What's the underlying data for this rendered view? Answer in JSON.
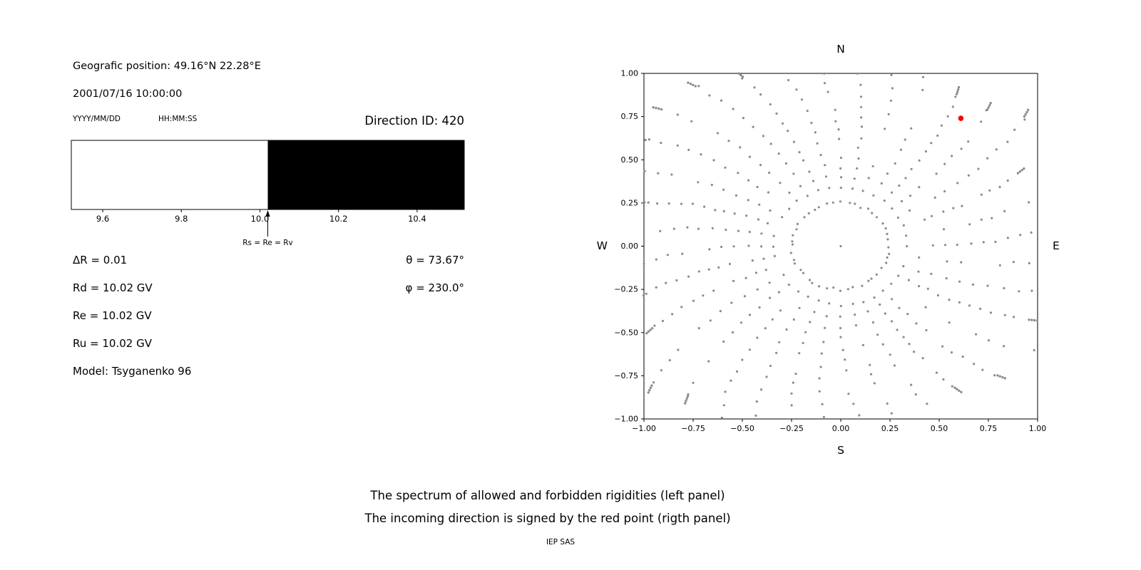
{
  "figure": {
    "bg": "#ffffff"
  },
  "header": {
    "geo_position": "Geografic position: 49.16°N 22.28°E",
    "datetime": "2001/07/16 10:00:00",
    "date_format_label": "YYYY/MM/DD",
    "time_format_label": "HH:MM:SS",
    "direction_id_label": "Direction ID: 420"
  },
  "parameters": {
    "left": [
      "ΔR = 0.01",
      "Rd = 10.02 GV",
      "Re = 10.02 GV",
      "Ru = 10.02 GV",
      "Model: Tsyganenko 96"
    ],
    "right": [
      "θ = 73.67°",
      "φ = 230.0°"
    ]
  },
  "compass": {
    "north": "N",
    "south": "S",
    "east": "E",
    "west": "W"
  },
  "caption": {
    "line1": "The spectrum of allowed and forbidden rigidities (left panel)",
    "line2": "The incoming direction is signed by the red point (rigth panel)",
    "credit": "IEP SAS"
  },
  "chart_data": [
    {
      "type": "area",
      "name": "rigidity-spectrum",
      "x_range": [
        9.52,
        10.52
      ],
      "allowed_region": {
        "from": 9.52,
        "to": 10.02,
        "color": "#ffffff",
        "meaning": "allowed rigidities"
      },
      "forbidden_region": {
        "from": 10.02,
        "to": 10.52,
        "color": "#000000",
        "meaning": "forbidden rigidities"
      },
      "x_tick_values": [
        9.6,
        9.8,
        10.0,
        10.2,
        10.4
      ],
      "x_tick_labels": [
        "9.6",
        "9.8",
        "10.0",
        "10.2",
        "10.4"
      ],
      "annotation": {
        "label": "Rs = Re = Rv",
        "x": 10.02
      }
    },
    {
      "type": "scatter",
      "name": "incoming-direction-map",
      "xlim": [
        -1.0,
        1.0
      ],
      "ylim": [
        -1.0,
        1.0
      ],
      "x_tick_values": [
        -1.0,
        -0.75,
        -0.5,
        -0.25,
        0.0,
        0.25,
        0.5,
        0.75,
        1.0
      ],
      "y_tick_values": [
        1.0,
        0.75,
        0.5,
        0.25,
        0.0,
        -0.25,
        -0.5,
        -0.75,
        -1.0
      ],
      "x_tick_labels": [
        "−1.00",
        "−0.75",
        "−0.50",
        "−0.25",
        "0.00",
        "0.25",
        "0.50",
        "0.75",
        "1.00"
      ],
      "y_tick_labels": [
        "1.00",
        "0.75",
        "0.50",
        "0.25",
        "0.00",
        "−0.25",
        "−0.50",
        "−0.75",
        "−1.00"
      ],
      "dot_color": "#8c8c8c",
      "red_point": {
        "x": 0.61,
        "y": 0.74,
        "color": "#ff0000",
        "meaning": "incoming direction"
      },
      "pattern": {
        "spoke_count": 36,
        "spoke_angle_step_deg": 10,
        "spoke_radius_start": 0.34,
        "spoke_radius_end_min": 0.98,
        "spoke_radius_end_max": 1.26,
        "dots_per_spoke": 13,
        "tip_cluster_dots": 4,
        "curvature_deg": 12,
        "inner_ring_radius": 0.25,
        "inner_ring_dots": 44,
        "center_dot": true
      }
    }
  ]
}
